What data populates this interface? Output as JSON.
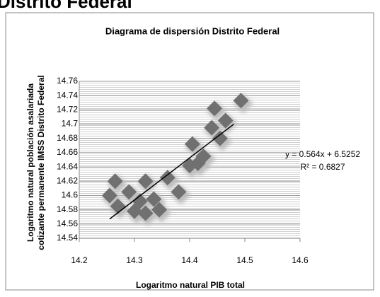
{
  "heading": "Distrito Federal",
  "chart_data": {
    "type": "scatter",
    "title": "Diagrama de dispersión Distrito Federal",
    "y_label": [
      "Logaritmo natural población asalariada",
      "cotizante permanente IMSS Distrito Federal"
    ],
    "x_label": "Logaritmo natural PIB total",
    "x": [
      14.265,
      14.255,
      14.27,
      14.29,
      14.3,
      14.31,
      14.32,
      14.32,
      14.335,
      14.345,
      14.36,
      14.38,
      14.405,
      14.4,
      14.415,
      14.425,
      14.44,
      14.445,
      14.455,
      14.465,
      14.493
    ],
    "values": [
      14.62,
      14.6,
      14.585,
      14.605,
      14.578,
      14.592,
      14.62,
      14.575,
      14.595,
      14.58,
      14.625,
      14.605,
      14.672,
      14.642,
      14.645,
      14.655,
      14.695,
      14.722,
      14.68,
      14.705,
      14.733
    ],
    "color": "#707070",
    "xlim": [
      14.2,
      14.6
    ],
    "xticks": [
      14.2,
      14.3,
      14.4,
      14.5,
      14.6
    ],
    "ylim": [
      14.54,
      14.76
    ],
    "yticks": [
      14.54,
      14.56,
      14.58,
      14.6,
      14.62,
      14.64,
      14.66,
      14.68,
      14.7,
      14.72,
      14.74,
      14.76
    ],
    "grid": true,
    "trendline": {
      "x": [
        14.255,
        14.48
      ],
      "y": [
        14.567,
        14.7
      ],
      "color": "#000000"
    },
    "annotations": [
      "y = 0.564x + 6.5252",
      "R² = 0.6827"
    ]
  }
}
